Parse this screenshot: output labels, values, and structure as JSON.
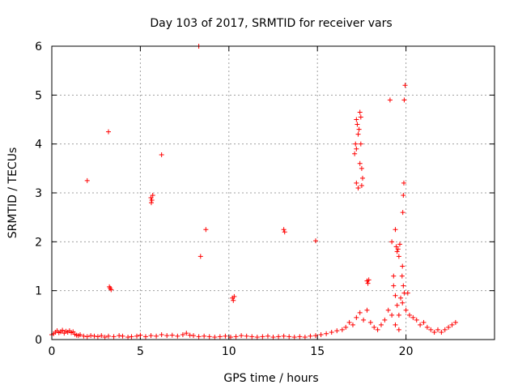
{
  "chart_data": {
    "type": "scatter",
    "title": "Day 103 of 2017, SRMTID for receiver vars",
    "xlabel": "GPS time / hours",
    "ylabel": "SRMTID / TECUs",
    "xlim": [
      0,
      25
    ],
    "ylim": [
      0,
      6
    ],
    "xticks": [
      0,
      5,
      10,
      15,
      20
    ],
    "yticks": [
      0,
      1,
      2,
      3,
      4,
      5,
      6
    ],
    "grid": true,
    "marker": "+",
    "color": "#ff0000",
    "series": [
      {
        "name": "SRMTID",
        "points": [
          [
            0.0,
            0.1
          ],
          [
            0.1,
            0.12
          ],
          [
            0.2,
            0.15
          ],
          [
            0.3,
            0.18
          ],
          [
            0.4,
            0.14
          ],
          [
            0.5,
            0.16
          ],
          [
            0.6,
            0.19
          ],
          [
            0.7,
            0.13
          ],
          [
            0.8,
            0.17
          ],
          [
            0.9,
            0.15
          ],
          [
            1.0,
            0.18
          ],
          [
            1.1,
            0.14
          ],
          [
            1.2,
            0.16
          ],
          [
            1.3,
            0.11
          ],
          [
            1.4,
            0.09
          ],
          [
            1.5,
            0.08
          ],
          [
            1.6,
            0.1
          ],
          [
            1.8,
            0.07
          ],
          [
            2.0,
            0.06
          ],
          [
            2.2,
            0.08
          ],
          [
            2.4,
            0.07
          ],
          [
            2.6,
            0.06
          ],
          [
            2.8,
            0.08
          ],
          [
            3.0,
            0.05
          ],
          [
            3.2,
            0.07
          ],
          [
            3.5,
            0.06
          ],
          [
            3.8,
            0.08
          ],
          [
            4.0,
            0.07
          ],
          [
            4.3,
            0.05
          ],
          [
            4.5,
            0.06
          ],
          [
            4.8,
            0.07
          ],
          [
            5.0,
            0.09
          ],
          [
            5.3,
            0.06
          ],
          [
            5.6,
            0.08
          ],
          [
            5.9,
            0.07
          ],
          [
            6.2,
            0.1
          ],
          [
            6.5,
            0.08
          ],
          [
            6.8,
            0.09
          ],
          [
            7.1,
            0.07
          ],
          [
            7.4,
            0.1
          ],
          [
            7.6,
            0.13
          ],
          [
            7.8,
            0.09
          ],
          [
            8.0,
            0.08
          ],
          [
            8.3,
            0.06
          ],
          [
            8.6,
            0.07
          ],
          [
            8.9,
            0.06
          ],
          [
            9.2,
            0.05
          ],
          [
            9.5,
            0.06
          ],
          [
            9.8,
            0.07
          ],
          [
            10.1,
            0.05
          ],
          [
            10.4,
            0.06
          ],
          [
            10.7,
            0.08
          ],
          [
            11.0,
            0.07
          ],
          [
            11.3,
            0.06
          ],
          [
            11.6,
            0.05
          ],
          [
            11.9,
            0.06
          ],
          [
            12.2,
            0.07
          ],
          [
            12.5,
            0.05
          ],
          [
            12.8,
            0.06
          ],
          [
            13.1,
            0.07
          ],
          [
            13.4,
            0.06
          ],
          [
            13.7,
            0.05
          ],
          [
            14.0,
            0.06
          ],
          [
            14.3,
            0.05
          ],
          [
            14.6,
            0.07
          ],
          [
            14.9,
            0.08
          ],
          [
            15.2,
            0.1
          ],
          [
            15.5,
            0.12
          ],
          [
            15.8,
            0.15
          ],
          [
            16.1,
            0.18
          ],
          [
            16.4,
            0.2
          ],
          [
            16.6,
            0.25
          ],
          [
            16.8,
            0.35
          ],
          [
            17.0,
            0.3
          ],
          [
            17.2,
            0.45
          ],
          [
            17.4,
            0.55
          ],
          [
            17.6,
            0.4
          ],
          [
            17.8,
            0.6
          ],
          [
            18.0,
            0.35
          ],
          [
            18.2,
            0.25
          ],
          [
            18.4,
            0.2
          ],
          [
            18.6,
            0.3
          ],
          [
            18.8,
            0.4
          ],
          [
            19.0,
            0.6
          ],
          [
            19.2,
            0.5
          ],
          [
            19.4,
            0.3
          ],
          [
            19.6,
            0.2
          ],
          [
            19.8,
            0.75
          ],
          [
            20.0,
            0.6
          ],
          [
            20.2,
            0.5
          ],
          [
            20.4,
            0.45
          ],
          [
            20.6,
            0.4
          ],
          [
            20.8,
            0.3
          ],
          [
            21.0,
            0.35
          ],
          [
            21.2,
            0.25
          ],
          [
            21.4,
            0.2
          ],
          [
            21.6,
            0.15
          ],
          [
            21.8,
            0.2
          ],
          [
            22.0,
            0.15
          ],
          [
            22.2,
            0.2
          ],
          [
            22.4,
            0.25
          ],
          [
            22.6,
            0.3
          ],
          [
            22.8,
            0.35
          ],
          [
            2.0,
            3.25
          ],
          [
            3.2,
            4.25
          ],
          [
            3.3,
            1.05
          ],
          [
            3.35,
            1.02
          ],
          [
            3.25,
            1.08
          ],
          [
            5.6,
            2.9
          ],
          [
            5.65,
            2.85
          ],
          [
            5.7,
            2.95
          ],
          [
            5.62,
            2.8
          ],
          [
            6.2,
            3.78
          ],
          [
            8.3,
            6.0
          ],
          [
            8.4,
            1.7
          ],
          [
            8.7,
            2.25
          ],
          [
            10.2,
            0.85
          ],
          [
            10.25,
            0.8
          ],
          [
            10.3,
            0.88
          ],
          [
            13.1,
            2.25
          ],
          [
            13.15,
            2.2
          ],
          [
            14.9,
            2.02
          ],
          [
            17.1,
            3.8
          ],
          [
            17.15,
            4.0
          ],
          [
            17.2,
            4.5
          ],
          [
            17.25,
            4.4
          ],
          [
            17.3,
            4.2
          ],
          [
            17.35,
            4.3
          ],
          [
            17.4,
            4.65
          ],
          [
            17.45,
            4.55
          ],
          [
            17.5,
            3.5
          ],
          [
            17.55,
            3.3
          ],
          [
            17.2,
            3.2
          ],
          [
            17.3,
            3.1
          ],
          [
            17.4,
            3.6
          ],
          [
            17.5,
            3.15
          ],
          [
            17.45,
            4.0
          ],
          [
            17.2,
            3.9
          ],
          [
            17.8,
            1.2
          ],
          [
            17.85,
            1.15
          ],
          [
            17.9,
            1.22
          ],
          [
            19.1,
            4.9
          ],
          [
            19.2,
            2.0
          ],
          [
            19.3,
            1.3
          ],
          [
            19.4,
            2.25
          ],
          [
            19.45,
            1.9
          ],
          [
            19.5,
            1.8
          ],
          [
            19.55,
            1.85
          ],
          [
            19.6,
            1.7
          ],
          [
            19.65,
            1.95
          ],
          [
            19.3,
            1.1
          ],
          [
            19.4,
            0.9
          ],
          [
            19.5,
            0.7
          ],
          [
            19.6,
            0.5
          ],
          [
            19.7,
            0.85
          ],
          [
            19.95,
            5.2
          ],
          [
            19.9,
            4.9
          ],
          [
            19.88,
            3.2
          ],
          [
            19.85,
            2.95
          ],
          [
            19.82,
            2.6
          ],
          [
            19.8,
            1.5
          ],
          [
            19.78,
            1.3
          ],
          [
            19.85,
            1.1
          ],
          [
            19.9,
            0.95
          ],
          [
            20.1,
            0.95
          ]
        ]
      }
    ]
  }
}
